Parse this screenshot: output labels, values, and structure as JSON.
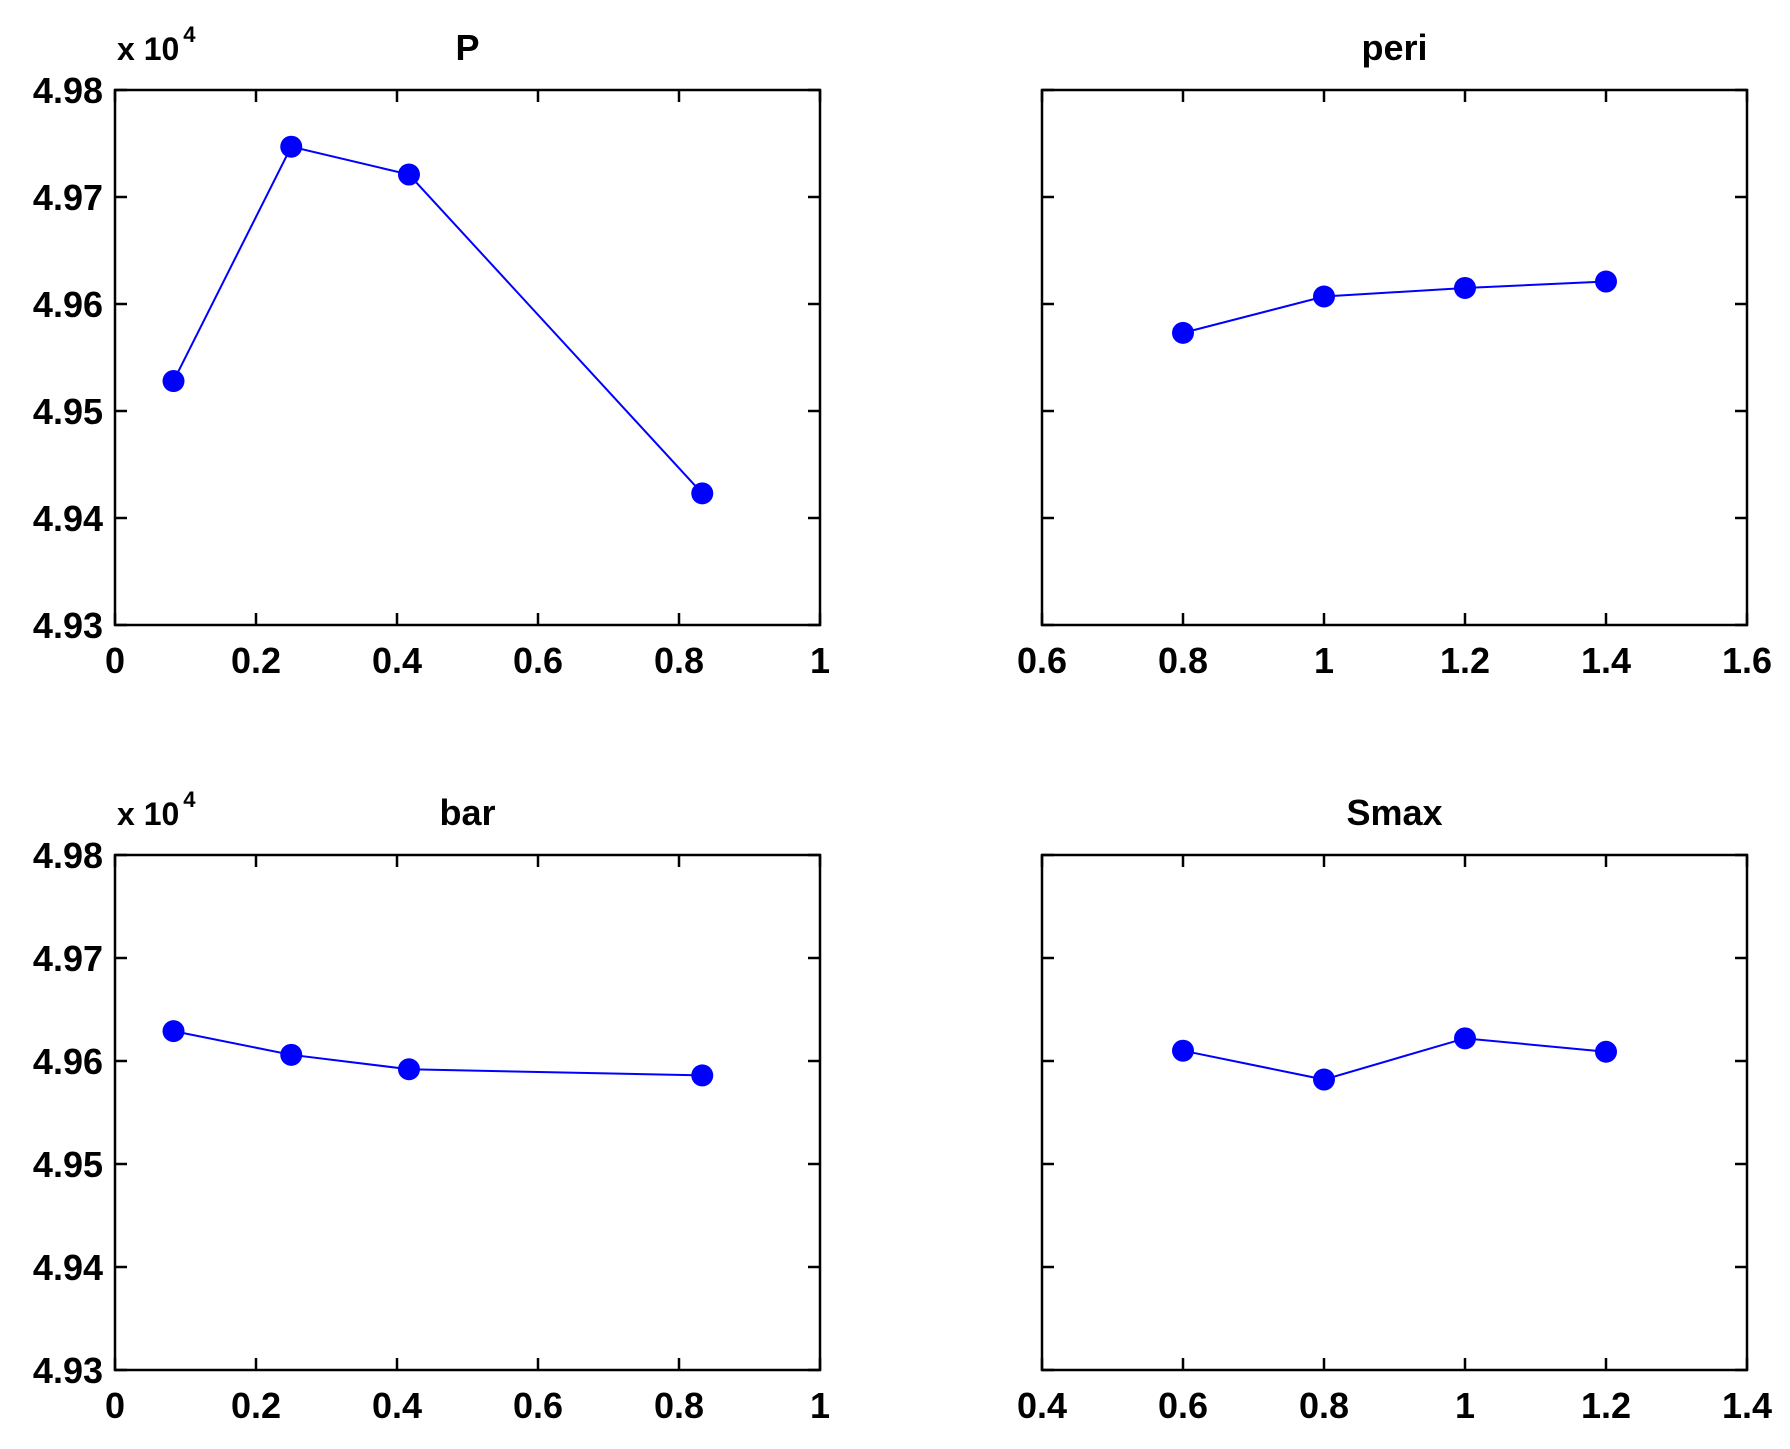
{
  "figure": {
    "layout": "2x2 grid of line plots with markers"
  },
  "colors": {
    "series": "#0000ff",
    "axes": "#000000",
    "background": "#ffffff"
  },
  "chart_data": [
    {
      "type": "line",
      "title": "P",
      "xlabel": "",
      "ylabel": "",
      "x": [
        0.083,
        0.25,
        0.417,
        0.833
      ],
      "y": [
        4.9528,
        4.9747,
        4.9721,
        4.9423
      ],
      "xlim": [
        0,
        1
      ],
      "ylim": [
        4.93,
        4.98
      ],
      "xticks": [
        "0",
        "0.2",
        "0.4",
        "0.6",
        "0.8",
        "1"
      ],
      "yticks": [
        "4.93",
        "4.94",
        "4.95",
        "4.96",
        "4.97",
        "4.98"
      ],
      "y_multiplier": {
        "base": "x 10",
        "exponent": "4"
      },
      "grid": false,
      "marker": "filled circle"
    },
    {
      "type": "line",
      "title": "peri",
      "xlabel": "",
      "ylabel": "",
      "x": [
        0.8,
        1.0,
        1.2,
        1.4
      ],
      "y": [
        4.9573,
        4.9607,
        4.9615,
        4.9621
      ],
      "xlim": [
        0.6,
        1.6
      ],
      "ylim": [
        4.93,
        4.98
      ],
      "xticks": [
        "0.6",
        "0.8",
        "1",
        "1.2",
        "1.4",
        "1.6"
      ],
      "yticks": [],
      "grid": false,
      "marker": "filled circle"
    },
    {
      "type": "line",
      "title": "bar",
      "xlabel": "",
      "ylabel": "",
      "x": [
        0.083,
        0.25,
        0.417,
        0.833
      ],
      "y": [
        4.9629,
        4.9606,
        4.9592,
        4.9586
      ],
      "xlim": [
        0,
        1
      ],
      "ylim": [
        4.93,
        4.98
      ],
      "xticks": [
        "0",
        "0.2",
        "0.4",
        "0.6",
        "0.8",
        "1"
      ],
      "yticks": [
        "4.93",
        "4.94",
        "4.95",
        "4.96",
        "4.97",
        "4.98"
      ],
      "y_multiplier": {
        "base": "x 10",
        "exponent": "4"
      },
      "grid": false,
      "marker": "filled circle"
    },
    {
      "type": "line",
      "title": "Smax",
      "xlabel": "",
      "ylabel": "",
      "x": [
        0.6,
        0.8,
        1.0,
        1.2
      ],
      "y": [
        4.961,
        4.9582,
        4.9622,
        4.9609
      ],
      "xlim": [
        0.4,
        1.4
      ],
      "ylim": [
        4.93,
        4.98
      ],
      "xticks": [
        "0.4",
        "0.6",
        "0.8",
        "1",
        "1.2",
        "1.4"
      ],
      "yticks": [],
      "grid": false,
      "marker": "filled circle"
    }
  ]
}
